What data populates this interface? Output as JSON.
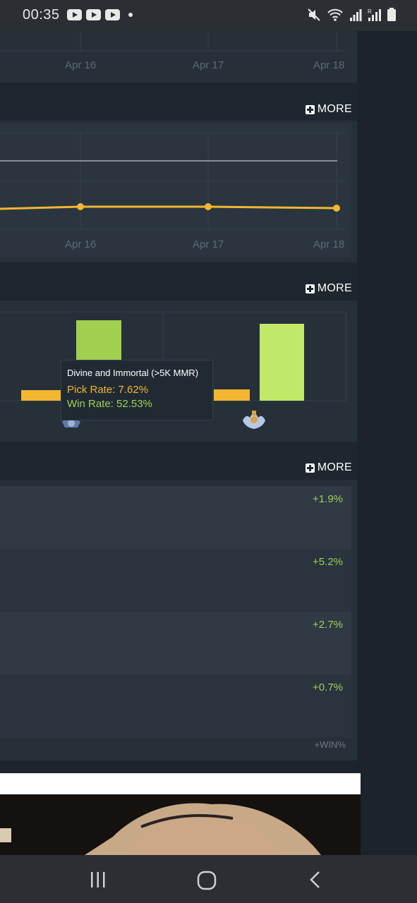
{
  "status_bar": {
    "time": "00:35",
    "notification_icons": [
      "youtube-icon",
      "youtube-icon",
      "youtube-icon"
    ],
    "system_icons": [
      "mute-icon",
      "wifi-icon",
      "signal-icon",
      "signal-roaming-icon",
      "battery-icon"
    ]
  },
  "chart1": {
    "x_ticks": [
      "Apr 16",
      "Apr 17",
      "Apr 18"
    ]
  },
  "chart2": {
    "more_label": "MORE",
    "x_ticks": [
      "Apr 16",
      "Apr 17",
      "Apr 18"
    ]
  },
  "chart3": {
    "more_label": "MORE",
    "tooltip": {
      "title": "Divine and Immortal (>5K MMR)",
      "pick_rate": "Pick Rate: 7.62%",
      "win_rate": "Win Rate: 52.53%"
    }
  },
  "chart_data": [
    {
      "type": "line",
      "x": [
        "Apr 16",
        "Apr 17",
        "Apr 18"
      ],
      "series": [
        {
          "values": [
            null,
            null,
            null
          ],
          "color": "#8a96a3"
        },
        {
          "values": [
            null,
            null,
            null
          ],
          "color": "#f2b632"
        }
      ]
    },
    {
      "type": "bar",
      "series": [
        {
          "name": "Pick Rate",
          "color": "#f2b632"
        },
        {
          "name": "Win Rate",
          "color": "#9ed055"
        }
      ],
      "categories": [
        "Divine and Immortal (>5K MMR)"
      ],
      "values_pick": [
        7.62
      ],
      "values_win": [
        52.53
      ]
    }
  ],
  "table": {
    "more_label": "MORE",
    "rows": [
      "+1.9%",
      "+5.2%",
      "+2.7%",
      "+0.7%"
    ],
    "column_header": "+WIN%"
  },
  "colors": {
    "accent_yellow": "#f2b632",
    "accent_green": "#9ed055",
    "panel": "#263039"
  },
  "nav_bar": {
    "buttons": [
      "recents-icon",
      "home-icon",
      "back-icon"
    ]
  }
}
